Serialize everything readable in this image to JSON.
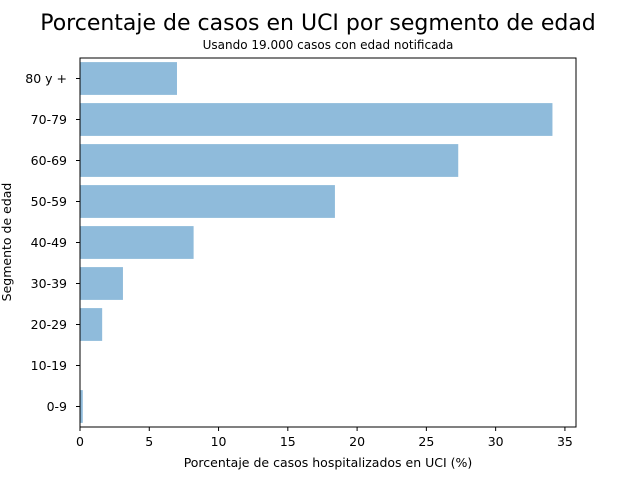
{
  "chart_data": {
    "type": "bar",
    "orientation": "horizontal",
    "title": "Porcentaje de casos en UCI por segmento de edad",
    "subtitle": "Usando 19.000 casos con edad notificada",
    "xlabel": "Porcentaje de casos hospitalizados en UCI (%)",
    "ylabel": "Segmento de edad",
    "categories": [
      "0-9",
      "10-19",
      "20-29",
      "30-39",
      "40-49",
      "50-59",
      "60-69",
      "70-79",
      "80 y +"
    ],
    "values": [
      0.2,
      0.0,
      1.6,
      3.1,
      8.2,
      18.4,
      27.3,
      34.1,
      7.0
    ],
    "xlim": [
      0,
      35.8
    ],
    "xticks": [
      0,
      5,
      10,
      15,
      20,
      25,
      30,
      35
    ],
    "bar_color": "#8fbbdb",
    "grid": false,
    "legend": "none"
  }
}
